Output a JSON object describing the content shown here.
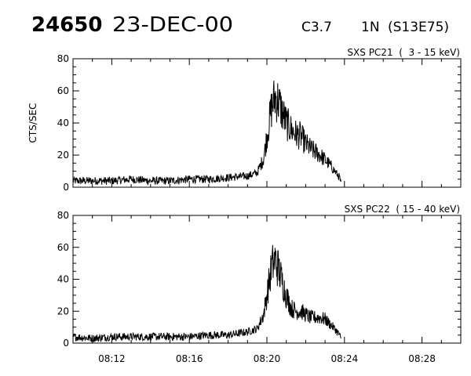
{
  "header": {
    "event_number": "24650",
    "date": "23-DEC-00",
    "goes_class": "C3.7",
    "h_alpha": "1N",
    "location": "(S13E75)"
  },
  "chart_data": [
    {
      "type": "line",
      "title": "SXS PC21  (  3 - 15 keV)",
      "ylabel": "CTS/SEC",
      "xlabel": "",
      "x_range": [
        "08:10:00",
        "08:30:00"
      ],
      "ylim": [
        0,
        80
      ],
      "y_ticks": [
        "0",
        "20",
        "40",
        "60",
        "80"
      ],
      "x_tick_labels": [
        "08:12",
        "08:16",
        "08:20",
        "08:24",
        "08:28"
      ],
      "grid": false,
      "series": [
        {
          "x": [
            "08:10:00",
            "08:11:00",
            "08:12:00",
            "08:13:00",
            "08:14:00",
            "08:15:00",
            "08:16:00",
            "08:17:00",
            "08:18:00",
            "08:19:00",
            "08:19:30",
            "08:19:50",
            "08:20:05",
            "08:20:15",
            "08:20:25",
            "08:20:35",
            "08:20:45",
            "08:21:00",
            "08:21:15",
            "08:21:30",
            "08:21:45",
            "08:22:00",
            "08:22:15",
            "08:22:30",
            "08:22:45",
            "08:23:00",
            "08:23:15",
            "08:23:30",
            "08:23:45",
            "08:23:50"
          ],
          "y": [
            4,
            4,
            4,
            5,
            4,
            4,
            5,
            5,
            6,
            7,
            9,
            18,
            38,
            50,
            56,
            54,
            48,
            40,
            36,
            33,
            32,
            27,
            24,
            22,
            20,
            17,
            14,
            10,
            6,
            1
          ]
        }
      ]
    },
    {
      "type": "line",
      "title": "SXS PC22  ( 15 - 40 keV)",
      "ylabel": "",
      "xlabel": "",
      "x_range": [
        "08:10:00",
        "08:30:00"
      ],
      "ylim": [
        0,
        80
      ],
      "y_ticks": [
        "0",
        "20",
        "40",
        "60",
        "80"
      ],
      "x_tick_labels": [
        "08:12",
        "08:16",
        "08:20",
        "08:24",
        "08:28"
      ],
      "grid": false,
      "series": [
        {
          "x": [
            "08:10:00",
            "08:11:00",
            "08:12:00",
            "08:13:00",
            "08:14:00",
            "08:15:00",
            "08:16:00",
            "08:17:00",
            "08:18:00",
            "08:19:00",
            "08:19:30",
            "08:19:50",
            "08:20:05",
            "08:20:15",
            "08:20:25",
            "08:20:35",
            "08:20:45",
            "08:21:00",
            "08:21:15",
            "08:21:30",
            "08:21:45",
            "08:22:00",
            "08:22:15",
            "08:22:30",
            "08:22:45",
            "08:23:00",
            "08:23:15",
            "08:23:30",
            "08:23:45",
            "08:23:50"
          ],
          "y": [
            4,
            3,
            4,
            4,
            4,
            4,
            4,
            5,
            5,
            7,
            9,
            18,
            36,
            48,
            52,
            47,
            40,
            30,
            22,
            20,
            20,
            18,
            16,
            16,
            16,
            15,
            12,
            9,
            5,
            1
          ]
        }
      ]
    }
  ]
}
